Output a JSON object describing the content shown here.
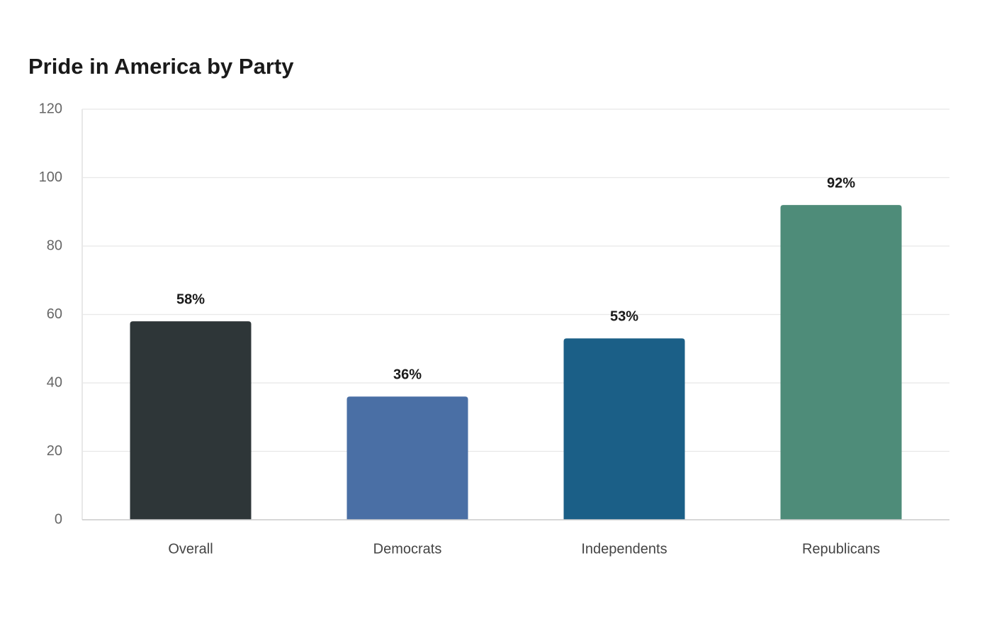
{
  "chart_data": {
    "type": "bar",
    "title": "Pride in America by Party",
    "categories": [
      "Overall",
      "Democrats",
      "Independents",
      "Republicans"
    ],
    "values": [
      58,
      36,
      53,
      92
    ],
    "value_labels": [
      "58%",
      "36%",
      "53%",
      "92%"
    ],
    "colors": [
      "#2e3638",
      "#4a6fa5",
      "#1b5f87",
      "#4e8c79"
    ],
    "ylim": [
      0,
      120
    ],
    "yticks": [
      0,
      20,
      40,
      60,
      80,
      100,
      120
    ],
    "grid": true
  }
}
